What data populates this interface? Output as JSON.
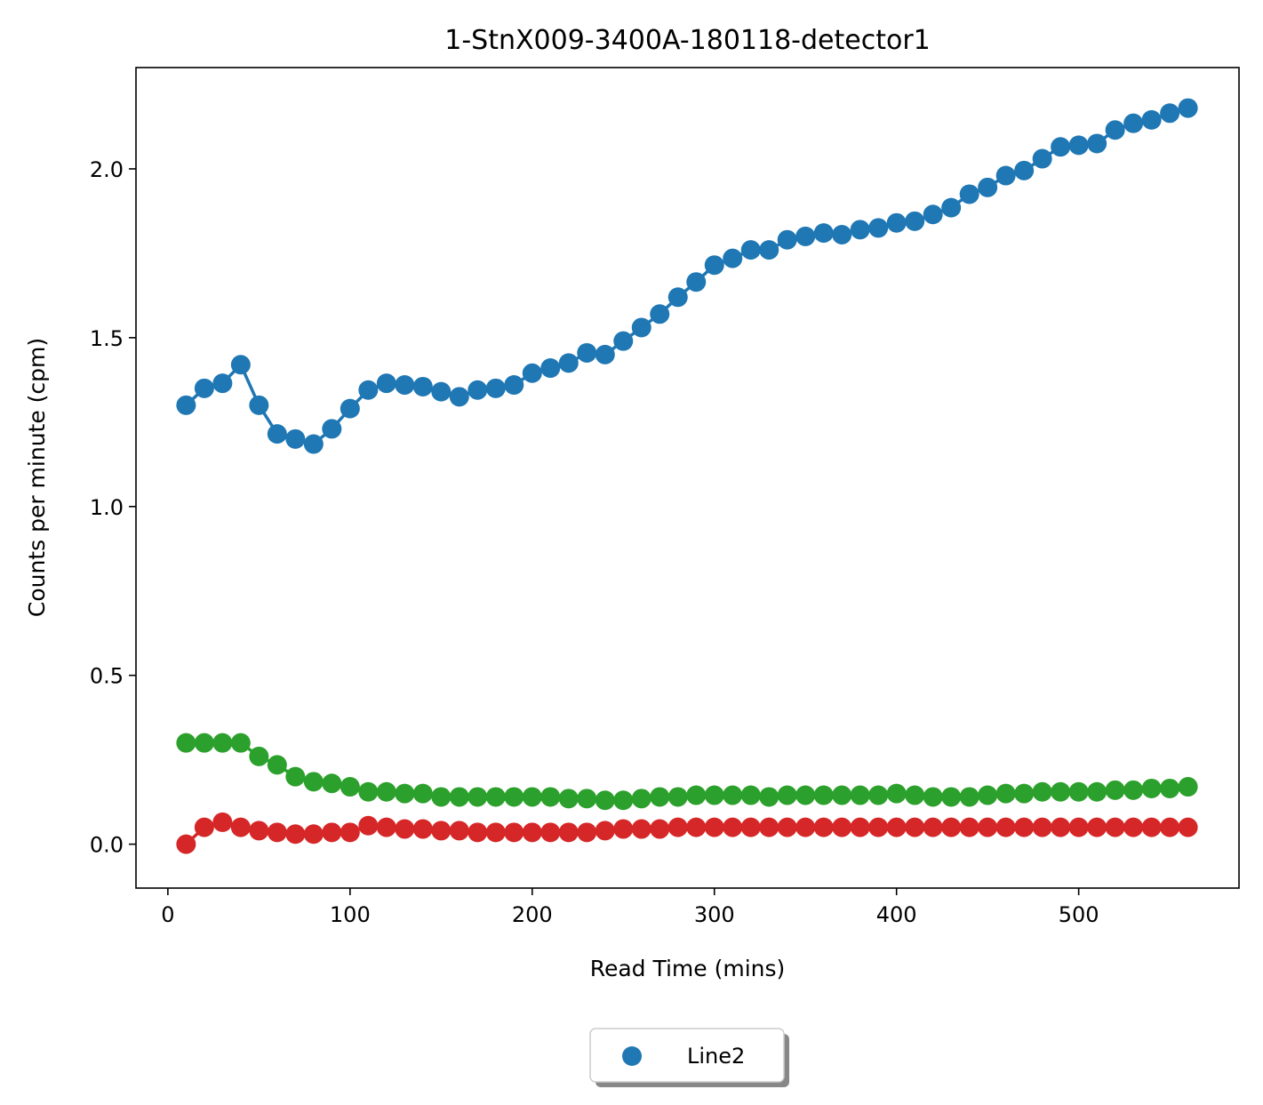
{
  "chart_data": {
    "type": "line",
    "title": "1-StnX009-3400A-180118-detector1",
    "xlabel": "Read Time (mins)",
    "ylabel": "Counts per minute (cpm)",
    "xlim": [
      -17.5,
      588
    ],
    "ylim": [
      -0.13,
      2.3
    ],
    "xticks": [
      0,
      100,
      200,
      300,
      400,
      500
    ],
    "yticks": [
      0.0,
      0.5,
      1.0,
      1.5,
      2.0
    ],
    "xtick_labels": [
      "0",
      "100",
      "200",
      "300",
      "400",
      "500"
    ],
    "ytick_labels": [
      "0.0",
      "0.5",
      "1.0",
      "1.5",
      "2.0"
    ],
    "grid": false,
    "legend": {
      "placement": "bottom-center-outside",
      "entries": [
        {
          "name": "Line2",
          "color": "#1f77b4"
        }
      ]
    },
    "x": [
      10,
      20,
      30,
      40,
      50,
      60,
      70,
      80,
      90,
      100,
      110,
      120,
      130,
      140,
      150,
      160,
      170,
      180,
      190,
      200,
      210,
      220,
      230,
      240,
      250,
      260,
      270,
      280,
      290,
      300,
      310,
      320,
      330,
      340,
      350,
      360,
      370,
      380,
      390,
      400,
      410,
      420,
      430,
      440,
      450,
      460,
      470,
      480,
      490,
      500,
      510,
      520,
      530,
      540,
      550,
      560
    ],
    "series": [
      {
        "color": "#1f77b4",
        "values": [
          1.3,
          1.35,
          1.365,
          1.42,
          1.3,
          1.215,
          1.2,
          1.185,
          1.23,
          1.29,
          1.345,
          1.365,
          1.36,
          1.355,
          1.34,
          1.325,
          1.345,
          1.35,
          1.36,
          1.395,
          1.41,
          1.425,
          1.455,
          1.45,
          1.49,
          1.53,
          1.57,
          1.62,
          1.665,
          1.715,
          1.735,
          1.76,
          1.76,
          1.79,
          1.8,
          1.81,
          1.805,
          1.82,
          1.825,
          1.84,
          1.845,
          1.865,
          1.885,
          1.925,
          1.945,
          1.98,
          1.995,
          2.03,
          2.065,
          2.07,
          2.075,
          2.115,
          2.135,
          2.145,
          2.165,
          2.18
        ]
      },
      {
        "color": "#2ca02c",
        "values": [
          0.3,
          0.3,
          0.3,
          0.3,
          0.26,
          0.235,
          0.2,
          0.185,
          0.18,
          0.17,
          0.155,
          0.155,
          0.15,
          0.15,
          0.14,
          0.14,
          0.14,
          0.14,
          0.14,
          0.14,
          0.14,
          0.135,
          0.135,
          0.13,
          0.13,
          0.135,
          0.14,
          0.14,
          0.145,
          0.145,
          0.145,
          0.145,
          0.14,
          0.145,
          0.145,
          0.145,
          0.145,
          0.145,
          0.145,
          0.15,
          0.145,
          0.14,
          0.14,
          0.14,
          0.145,
          0.15,
          0.15,
          0.155,
          0.155,
          0.155,
          0.155,
          0.16,
          0.16,
          0.165,
          0.165,
          0.17
        ]
      },
      {
        "color": "#d62728",
        "values": [
          0.0,
          0.05,
          0.065,
          0.05,
          0.04,
          0.035,
          0.03,
          0.03,
          0.035,
          0.035,
          0.055,
          0.05,
          0.045,
          0.045,
          0.04,
          0.04,
          0.035,
          0.035,
          0.035,
          0.035,
          0.035,
          0.035,
          0.035,
          0.04,
          0.045,
          0.045,
          0.045,
          0.05,
          0.05,
          0.05,
          0.05,
          0.05,
          0.05,
          0.05,
          0.05,
          0.05,
          0.05,
          0.05,
          0.05,
          0.05,
          0.05,
          0.05,
          0.05,
          0.05,
          0.05,
          0.05,
          0.05,
          0.05,
          0.05,
          0.05,
          0.05,
          0.05,
          0.05,
          0.05,
          0.05,
          0.05
        ]
      }
    ]
  }
}
